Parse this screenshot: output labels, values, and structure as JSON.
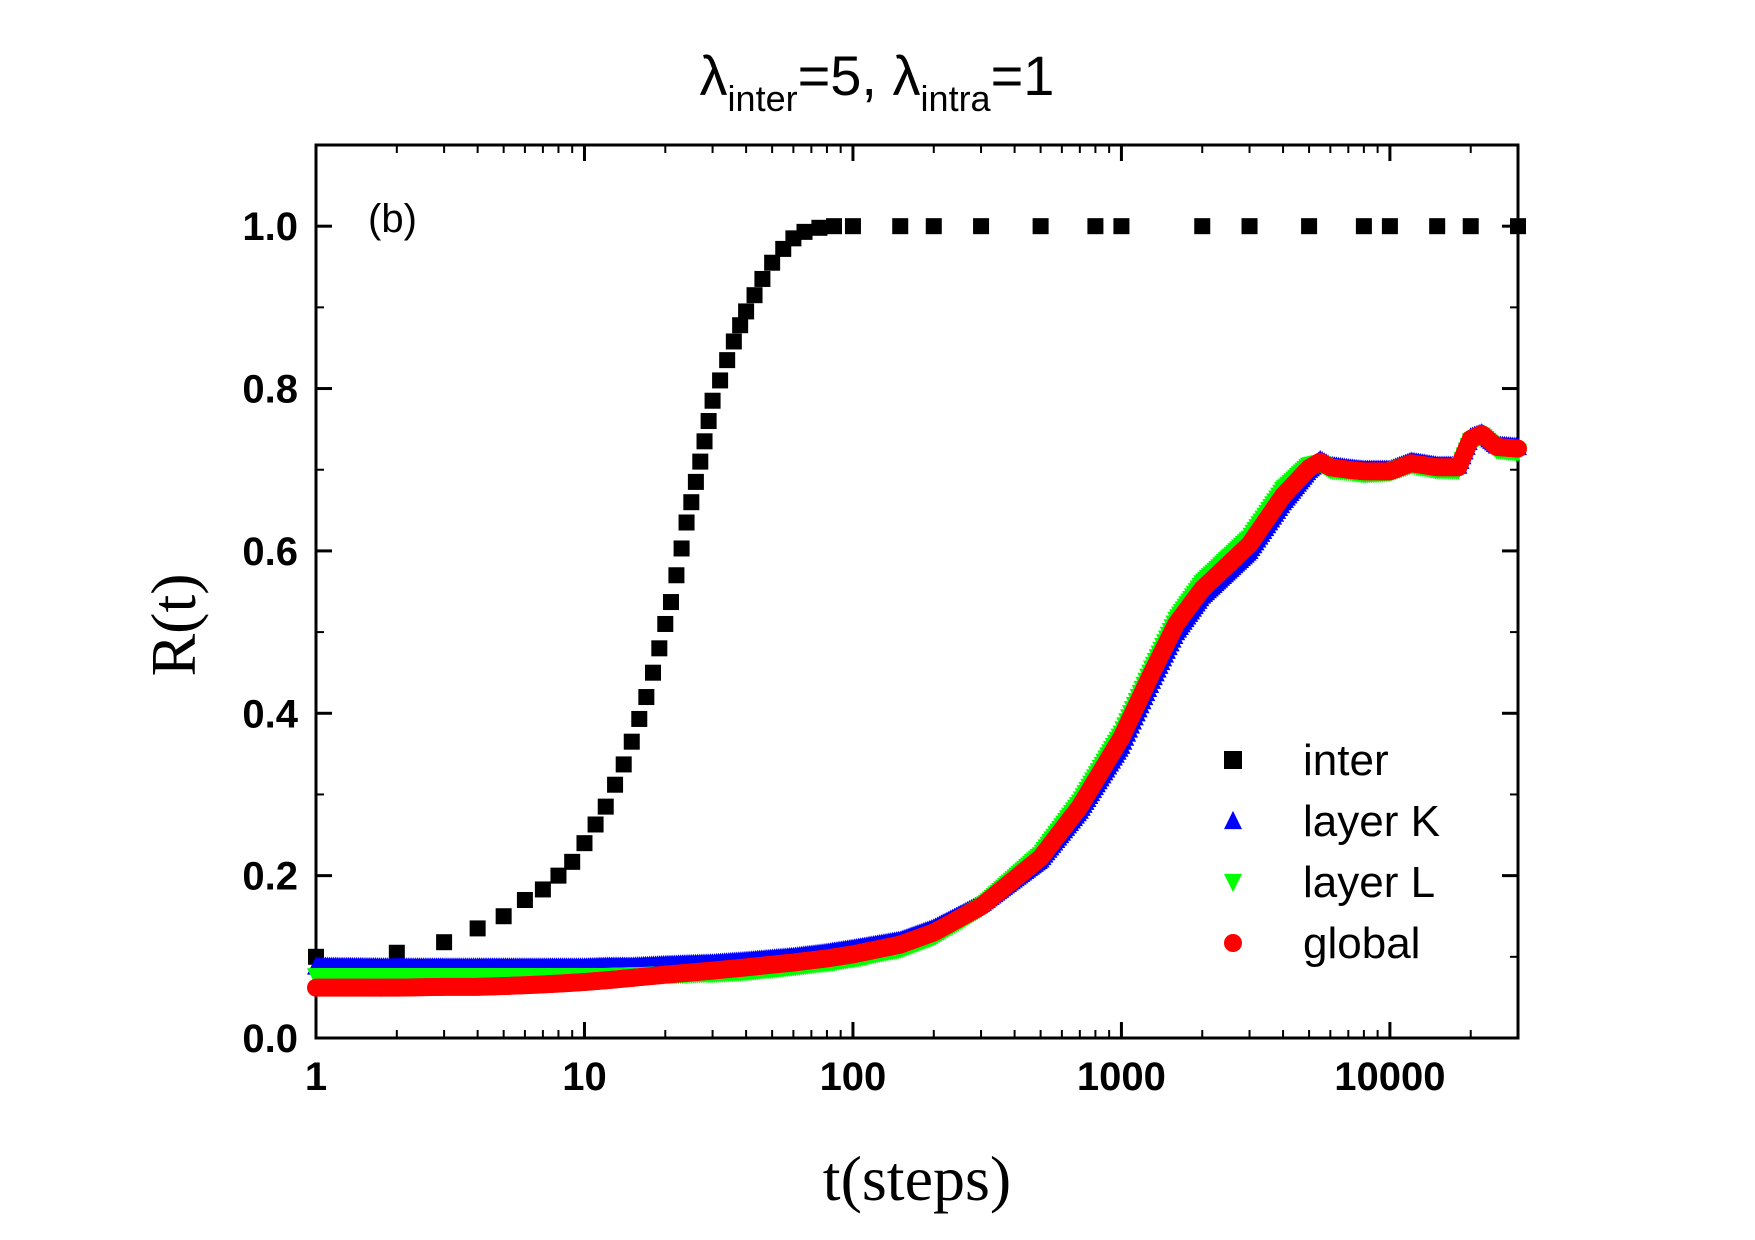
{
  "chart_data": {
    "type": "scatter",
    "title": {
      "symbol1": "λ",
      "sub1": "inter",
      "text1": "=5, ",
      "symbol2": "λ",
      "sub2": "intra",
      "text2": "=1"
    },
    "panel_label": "(b)",
    "xlabel": "t(steps)",
    "ylabel": "R(t)",
    "xscale": "log",
    "xlim": [
      1,
      30000
    ],
    "ylim": [
      0.0,
      1.1
    ],
    "x_ticks": [
      1,
      10,
      100,
      1000,
      10000
    ],
    "x_tick_labels": [
      "1",
      "10",
      "100",
      "1000",
      "10000"
    ],
    "y_ticks": [
      0.0,
      0.2,
      0.4,
      0.6,
      0.8,
      1.0
    ],
    "y_tick_labels": [
      "0.0",
      "0.2",
      "0.4",
      "0.6",
      "0.8",
      "1.0"
    ],
    "legend_position": "bottom-right",
    "series": [
      {
        "name": "inter",
        "marker": "square",
        "color": "#000000",
        "points": [
          [
            1,
            0.1
          ],
          [
            2,
            0.105
          ],
          [
            3,
            0.118
          ],
          [
            4,
            0.135
          ],
          [
            5,
            0.15
          ],
          [
            6,
            0.17
          ],
          [
            7,
            0.183
          ],
          [
            8,
            0.2
          ],
          [
            9,
            0.217
          ],
          [
            10,
            0.24
          ],
          [
            11,
            0.263
          ],
          [
            12,
            0.285
          ],
          [
            13,
            0.312
          ],
          [
            14,
            0.337
          ],
          [
            15,
            0.365
          ],
          [
            16,
            0.393
          ],
          [
            17,
            0.42
          ],
          [
            18,
            0.45
          ],
          [
            19,
            0.48
          ],
          [
            20,
            0.51
          ],
          [
            21,
            0.537
          ],
          [
            22,
            0.57
          ],
          [
            23,
            0.603
          ],
          [
            24,
            0.635
          ],
          [
            25,
            0.66
          ],
          [
            26,
            0.685
          ],
          [
            27,
            0.71
          ],
          [
            28,
            0.735
          ],
          [
            29,
            0.76
          ],
          [
            30,
            0.785
          ],
          [
            32,
            0.81
          ],
          [
            34,
            0.835
          ],
          [
            36,
            0.858
          ],
          [
            38,
            0.878
          ],
          [
            40,
            0.895
          ],
          [
            43,
            0.915
          ],
          [
            46,
            0.935
          ],
          [
            50,
            0.955
          ],
          [
            55,
            0.972
          ],
          [
            60,
            0.985
          ],
          [
            66,
            0.993
          ],
          [
            75,
            0.998
          ],
          [
            85,
            1.0
          ],
          [
            100,
            1.0
          ],
          [
            150,
            1.0
          ],
          [
            200,
            1.0
          ],
          [
            300,
            1.0
          ],
          [
            500,
            1.0
          ],
          [
            800,
            1.0
          ],
          [
            1000,
            1.0
          ],
          [
            2000,
            1.0
          ],
          [
            3000,
            1.0
          ],
          [
            5000,
            1.0
          ],
          [
            8000,
            1.0
          ],
          [
            10000,
            1.0
          ],
          [
            15000,
            1.0
          ],
          [
            20000,
            1.0
          ],
          [
            30000,
            1.0
          ]
        ]
      },
      {
        "name": "layer K",
        "marker": "triangle-up",
        "color": "#0000ff",
        "points": [
          [
            1,
            0.088
          ],
          [
            2,
            0.087
          ],
          [
            3,
            0.087
          ],
          [
            4,
            0.087
          ],
          [
            5,
            0.087
          ],
          [
            6,
            0.087
          ],
          [
            7,
            0.087
          ],
          [
            8,
            0.087
          ],
          [
            9,
            0.087
          ],
          [
            10,
            0.087
          ],
          [
            12,
            0.088
          ],
          [
            15,
            0.088
          ],
          [
            20,
            0.09
          ],
          [
            30,
            0.092
          ],
          [
            40,
            0.095
          ],
          [
            60,
            0.1
          ],
          [
            80,
            0.105
          ],
          [
            100,
            0.11
          ],
          [
            150,
            0.12
          ],
          [
            200,
            0.135
          ],
          [
            300,
            0.165
          ],
          [
            500,
            0.22
          ],
          [
            700,
            0.28
          ],
          [
            1000,
            0.36
          ],
          [
            1300,
            0.44
          ],
          [
            1600,
            0.5
          ],
          [
            2000,
            0.545
          ],
          [
            3000,
            0.6
          ],
          [
            4000,
            0.66
          ],
          [
            5000,
            0.7
          ],
          [
            5500,
            0.712
          ],
          [
            6000,
            0.705
          ],
          [
            7000,
            0.702
          ],
          [
            8000,
            0.7
          ],
          [
            10000,
            0.7
          ],
          [
            12000,
            0.71
          ],
          [
            15000,
            0.705
          ],
          [
            18000,
            0.705
          ],
          [
            20000,
            0.74
          ],
          [
            22000,
            0.745
          ],
          [
            25000,
            0.73
          ],
          [
            30000,
            0.728
          ]
        ]
      },
      {
        "name": "layer L",
        "marker": "triangle-down",
        "color": "#00ff00",
        "points": [
          [
            1,
            0.076
          ],
          [
            2,
            0.076
          ],
          [
            3,
            0.076
          ],
          [
            4,
            0.076
          ],
          [
            5,
            0.076
          ],
          [
            6,
            0.076
          ],
          [
            7,
            0.076
          ],
          [
            8,
            0.076
          ],
          [
            9,
            0.076
          ],
          [
            10,
            0.076
          ],
          [
            12,
            0.076
          ],
          [
            15,
            0.077
          ],
          [
            20,
            0.078
          ],
          [
            30,
            0.08
          ],
          [
            40,
            0.082
          ],
          [
            60,
            0.088
          ],
          [
            80,
            0.093
          ],
          [
            100,
            0.098
          ],
          [
            150,
            0.11
          ],
          [
            200,
            0.125
          ],
          [
            300,
            0.16
          ],
          [
            500,
            0.225
          ],
          [
            700,
            0.29
          ],
          [
            1000,
            0.375
          ],
          [
            1300,
            0.455
          ],
          [
            1600,
            0.515
          ],
          [
            2000,
            0.56
          ],
          [
            3000,
            0.615
          ],
          [
            4000,
            0.675
          ],
          [
            5000,
            0.705
          ],
          [
            5500,
            0.708
          ],
          [
            6000,
            0.7
          ],
          [
            7000,
            0.698
          ],
          [
            8000,
            0.695
          ],
          [
            10000,
            0.697
          ],
          [
            12000,
            0.706
          ],
          [
            15000,
            0.7
          ],
          [
            18000,
            0.7
          ],
          [
            20000,
            0.735
          ],
          [
            22000,
            0.742
          ],
          [
            25000,
            0.725
          ],
          [
            30000,
            0.722
          ]
        ]
      },
      {
        "name": "global",
        "marker": "circle",
        "color": "#ff0000",
        "points": [
          [
            1,
            0.062
          ],
          [
            2,
            0.062
          ],
          [
            3,
            0.063
          ],
          [
            4,
            0.063
          ],
          [
            5,
            0.064
          ],
          [
            6,
            0.065
          ],
          [
            7,
            0.066
          ],
          [
            8,
            0.067
          ],
          [
            9,
            0.068
          ],
          [
            10,
            0.069
          ],
          [
            12,
            0.071
          ],
          [
            15,
            0.074
          ],
          [
            20,
            0.078
          ],
          [
            30,
            0.083
          ],
          [
            40,
            0.087
          ],
          [
            60,
            0.093
          ],
          [
            80,
            0.098
          ],
          [
            100,
            0.103
          ],
          [
            150,
            0.115
          ],
          [
            200,
            0.13
          ],
          [
            300,
            0.162
          ],
          [
            500,
            0.222
          ],
          [
            700,
            0.285
          ],
          [
            1000,
            0.37
          ],
          [
            1300,
            0.45
          ],
          [
            1600,
            0.51
          ],
          [
            2000,
            0.553
          ],
          [
            3000,
            0.608
          ],
          [
            4000,
            0.668
          ],
          [
            5000,
            0.702
          ],
          [
            5500,
            0.71
          ],
          [
            6000,
            0.703
          ],
          [
            7000,
            0.7
          ],
          [
            8000,
            0.698
          ],
          [
            10000,
            0.698
          ],
          [
            12000,
            0.708
          ],
          [
            15000,
            0.703
          ],
          [
            18000,
            0.703
          ],
          [
            20000,
            0.738
          ],
          [
            22000,
            0.744
          ],
          [
            25000,
            0.728
          ],
          [
            30000,
            0.726
          ]
        ]
      }
    ]
  }
}
